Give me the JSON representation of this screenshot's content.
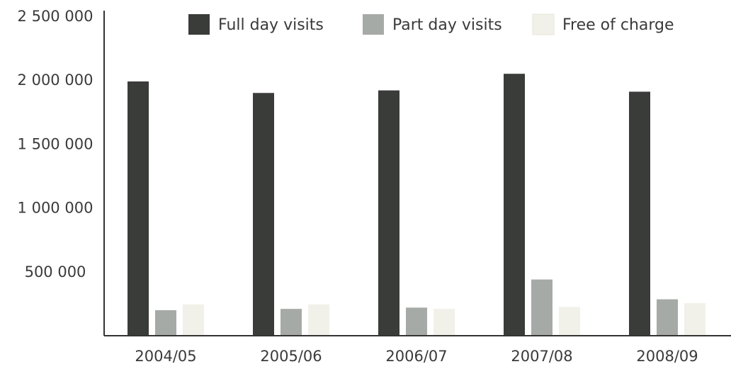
{
  "chart_data": {
    "type": "bar",
    "categories": [
      "2004/05",
      "2005/06",
      "2006/07",
      "2007/08",
      "2008/09"
    ],
    "series": [
      {
        "name": "Full day visits",
        "color": "#3a3c3a",
        "values": [
          1990000,
          1900000,
          1920000,
          2050000,
          1910000
        ]
      },
      {
        "name": "Part day visits",
        "color": "#a6aaa6",
        "values": [
          200000,
          210000,
          220000,
          440000,
          285000
        ]
      },
      {
        "name": "Free of charge",
        "color": "#f1f0e9",
        "values": [
          245000,
          245000,
          210000,
          225000,
          255000
        ]
      }
    ],
    "yticks": [
      {
        "value": 500000,
        "label": "500 000"
      },
      {
        "value": 1000000,
        "label": "1 000 000"
      },
      {
        "value": 1500000,
        "label": "1 500 000"
      },
      {
        "value": 2000000,
        "label": "2 000 000"
      },
      {
        "value": 2500000,
        "label": "2 500 000"
      }
    ],
    "ylim": [
      0,
      2500000
    ],
    "legend_position": "top",
    "grid": false,
    "title": "",
    "xlabel": "",
    "ylabel": ""
  }
}
